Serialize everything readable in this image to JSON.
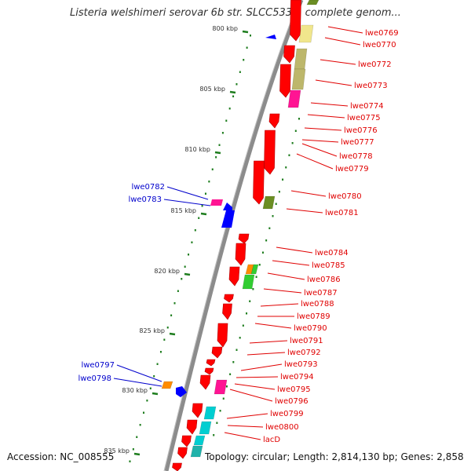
{
  "title": "Listeria welshimeri serovar 6b str. SLCC5334, complete genom...",
  "accession_text": "Accession: NC_008555",
  "topology_text": "Topology: circular; Length: 2,814,130 bp; Genes: 2,858",
  "colors": {
    "backbone": "#8c8c8c",
    "tick": "#1e7d1e",
    "right_label": "#e00000",
    "left_label": "#0000cc"
  },
  "tick_labels": [
    {
      "label": "800 kbp"
    },
    {
      "label": "805 kbp"
    },
    {
      "label": "810 kbp"
    },
    {
      "label": "815 kbp"
    },
    {
      "label": "820 kbp"
    },
    {
      "label": "825 kbp"
    },
    {
      "label": "830 kbp"
    },
    {
      "label": "835 kbp"
    }
  ],
  "right_labels": [
    {
      "text": "lwe0769"
    },
    {
      "text": "lwe0770"
    },
    {
      "text": "lwe0772"
    },
    {
      "text": "lwe0773"
    },
    {
      "text": "lwe0774"
    },
    {
      "text": "lwe0775"
    },
    {
      "text": "lwe0776"
    },
    {
      "text": "lwe0777"
    },
    {
      "text": "lwe0778"
    },
    {
      "text": "lwe0779"
    },
    {
      "text": "lwe0780"
    },
    {
      "text": "lwe0781"
    },
    {
      "text": "lwe0784"
    },
    {
      "text": "lwe0785"
    },
    {
      "text": "lwe0786"
    },
    {
      "text": "lwe0787"
    },
    {
      "text": "lwe0788"
    },
    {
      "text": "lwe0789"
    },
    {
      "text": "lwe0790"
    },
    {
      "text": "lwe0791"
    },
    {
      "text": "lwe0792"
    },
    {
      "text": "lwe0793"
    },
    {
      "text": "lwe0794"
    },
    {
      "text": "lwe0795"
    },
    {
      "text": "lwe0796"
    },
    {
      "text": "lwe0799"
    },
    {
      "text": "lwe0800"
    },
    {
      "text": "lacD"
    }
  ],
  "left_labels": [
    {
      "text": "lwe0782"
    },
    {
      "text": "lwe0783"
    },
    {
      "text": "lwe0797"
    },
    {
      "text": "lwe0798"
    }
  ]
}
